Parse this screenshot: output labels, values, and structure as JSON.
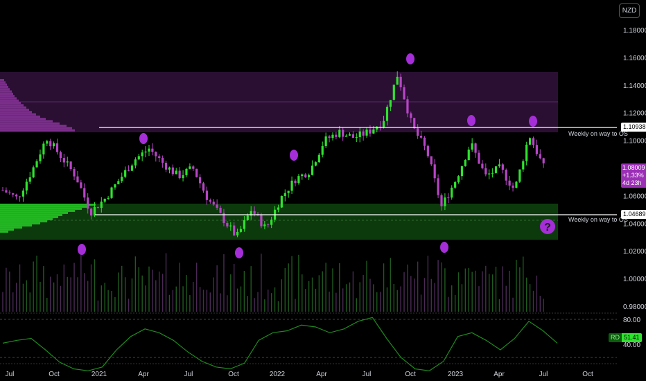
{
  "currency": "NZD",
  "y_ticks": [
    "1.18000",
    "1.16000",
    "1.14000",
    "1.12000",
    "1.10000",
    "1.08000",
    "1.06000",
    "1.04000",
    "1.02000",
    "1.00000",
    "0.98000"
  ],
  "x_ticks": [
    "Jul",
    "Oct",
    "2021",
    "Apr",
    "Jul",
    "Oct",
    "2022",
    "Apr",
    "Jul",
    "Oct",
    "2023",
    "Apr",
    "Jul",
    "Oct"
  ],
  "osc_ticks": [
    "80.00",
    "40.00"
  ],
  "lines": [
    {
      "label": "Weekly on way to OS",
      "price_label": "1.10938",
      "value": 1.10938
    },
    {
      "label": "Weekly on way to OS",
      "price_label": "1.04689",
      "value": 1.04689
    }
  ],
  "last_price": {
    "price": "1.08009",
    "change": "+1.33%",
    "countdown": "4d 23h"
  },
  "oscillator": {
    "label": "RD",
    "value": "51.41"
  },
  "question_mark": "?",
  "colors": {
    "bull": "#2ee32e",
    "bear": "#b845c7",
    "zone_top": "#2a0f33",
    "zone_bottom": "#0d3a0d",
    "oscillator": "#1f8a1f",
    "marker": "#a52ed8"
  },
  "chart_data": {
    "type": "candlestick",
    "x": [
      "Jul",
      "Oct",
      "2021",
      "Apr",
      "Jul",
      "Oct",
      "2022",
      "Apr",
      "Jul",
      "Oct",
      "2023",
      "Apr",
      "Jul",
      "Oct"
    ],
    "ylim": [
      0.97,
      1.19
    ],
    "close_path": [
      {
        "x": "2020-06",
        "y": 1.064
      },
      {
        "x": "2020-07",
        "y": 1.058
      },
      {
        "x": "2020-08",
        "y": 1.078
      },
      {
        "x": "2020-09",
        "y": 1.102
      },
      {
        "x": "2020-10",
        "y": 1.088
      },
      {
        "x": "2020-11",
        "y": 1.074
      },
      {
        "x": "2020-12",
        "y": 1.048
      },
      {
        "x": "2021-01",
        "y": 1.058
      },
      {
        "x": "2021-02",
        "y": 1.072
      },
      {
        "x": "2021-03",
        "y": 1.086
      },
      {
        "x": "2021-04",
        "y": 1.094
      },
      {
        "x": "2021-05",
        "y": 1.083
      },
      {
        "x": "2021-06",
        "y": 1.074
      },
      {
        "x": "2021-07",
        "y": 1.08
      },
      {
        "x": "2021-08",
        "y": 1.058
      },
      {
        "x": "2021-09",
        "y": 1.044
      },
      {
        "x": "2021-10",
        "y": 1.03
      },
      {
        "x": "2021-11",
        "y": 1.05
      },
      {
        "x": "2021-12",
        "y": 1.036
      },
      {
        "x": "2022-01",
        "y": 1.058
      },
      {
        "x": "2022-02",
        "y": 1.072
      },
      {
        "x": "2022-03",
        "y": 1.078
      },
      {
        "x": "2022-04",
        "y": 1.1
      },
      {
        "x": "2022-05",
        "y": 1.106
      },
      {
        "x": "2022-06",
        "y": 1.102
      },
      {
        "x": "2022-07",
        "y": 1.106
      },
      {
        "x": "2022-08",
        "y": 1.114
      },
      {
        "x": "2022-09",
        "y": 1.148
      },
      {
        "x": "2022-10",
        "y": 1.11
      },
      {
        "x": "2022-11",
        "y": 1.092
      },
      {
        "x": "2022-12",
        "y": 1.052
      },
      {
        "x": "2023-01",
        "y": 1.072
      },
      {
        "x": "2023-02",
        "y": 1.098
      },
      {
        "x": "2023-03",
        "y": 1.074
      },
      {
        "x": "2023-04",
        "y": 1.08
      },
      {
        "x": "2023-05",
        "y": 1.064
      },
      {
        "x": "2023-06",
        "y": 1.104
      },
      {
        "x": "2023-07",
        "y": 1.08
      }
    ],
    "zones": [
      {
        "name": "supply",
        "from": 1.107,
        "to": 1.149
      },
      {
        "name": "demand",
        "from": 1.028,
        "to": 1.056
      }
    ],
    "oscillator_levels": [
      80,
      40
    ]
  }
}
